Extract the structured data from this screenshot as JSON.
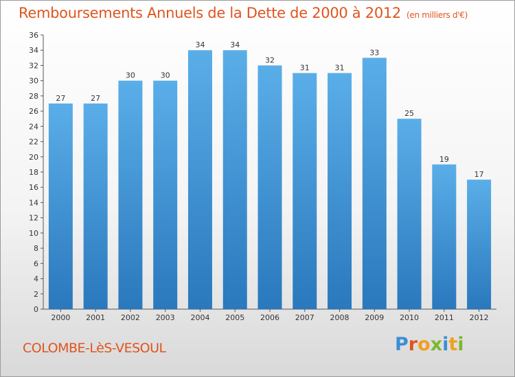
{
  "header": {
    "title": "Remboursements Annuels de la Dette de 2000 à 2012",
    "unit": "(en milliers d'€)"
  },
  "footer": {
    "commune": "COLOMBE-LèS-VESOUL",
    "logo_letters": [
      {
        "ch": "P",
        "color": "#3a8fd4"
      },
      {
        "ch": "r",
        "color": "#e0541f"
      },
      {
        "ch": "o",
        "color": "#f0a020"
      },
      {
        "ch": "x",
        "color": "#7cb82f"
      },
      {
        "ch": "i",
        "color": "#3a8fd4"
      },
      {
        "ch": "t",
        "color": "#f0a020"
      },
      {
        "ch": "i",
        "color": "#7cb82f"
      }
    ]
  },
  "chart_data": {
    "type": "bar",
    "title": "Remboursements Annuels de la Dette de 2000 à 2012",
    "categories": [
      "2000",
      "2001",
      "2002",
      "2003",
      "2004",
      "2005",
      "2006",
      "2007",
      "2008",
      "2009",
      "2010",
      "2011",
      "2012"
    ],
    "values": [
      27,
      27,
      30,
      30,
      34,
      34,
      32,
      31,
      31,
      33,
      25,
      19,
      17
    ],
    "ylim": [
      0,
      36
    ],
    "ytick_step": 2,
    "grid": false,
    "bar_color_top": "#5aaee8",
    "bar_color_bottom": "#2a78bd",
    "text_color": "#333333"
  }
}
